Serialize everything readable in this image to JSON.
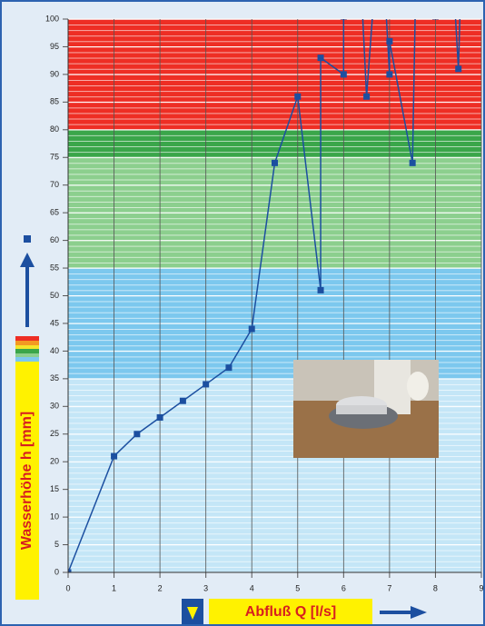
{
  "chart_data": {
    "type": "line",
    "x_label": "Abfluß Q [l/s]",
    "y_label": "Wasserhöhe h [mm]",
    "series": [
      {
        "color": "#1c4fa0",
        "x": [
          0,
          1,
          1.5,
          2,
          2.5,
          3,
          3.5,
          4,
          4.5,
          5,
          5.5,
          5.5,
          6,
          6,
          6.3,
          6.5,
          6.8,
          7,
          7,
          7.5,
          7.6,
          8,
          8.3,
          8.5,
          8.6
        ],
        "values": [
          0,
          21,
          25,
          28,
          31,
          34,
          37,
          44,
          74,
          86,
          51,
          93,
          90,
          100.5,
          120,
          86,
          120,
          90,
          96,
          74,
          120,
          100.5,
          120,
          91,
          120
        ]
      }
    ],
    "bands": [
      {
        "from": 80,
        "to": 100,
        "color": "#ee2e24"
      },
      {
        "from": 75,
        "to": 80,
        "color": "#3aa64a"
      },
      {
        "from": 55,
        "to": 75,
        "color": "#8ccf8e"
      },
      {
        "from": 35,
        "to": 55,
        "color": "#7cc8ee"
      },
      {
        "from": 0,
        "to": 35,
        "color": "#c4e6f7"
      }
    ],
    "xlim": [
      0,
      9
    ],
    "xticks": [
      0,
      1,
      2,
      3,
      4,
      5,
      6,
      7,
      8,
      9
    ],
    "ylim": [
      0,
      100
    ],
    "yticks": [
      0,
      5,
      10,
      15,
      20,
      25,
      30,
      35,
      40,
      45,
      50,
      55,
      60,
      65,
      70,
      75,
      80,
      85,
      90,
      95,
      100
    ],
    "grid": true
  }
}
